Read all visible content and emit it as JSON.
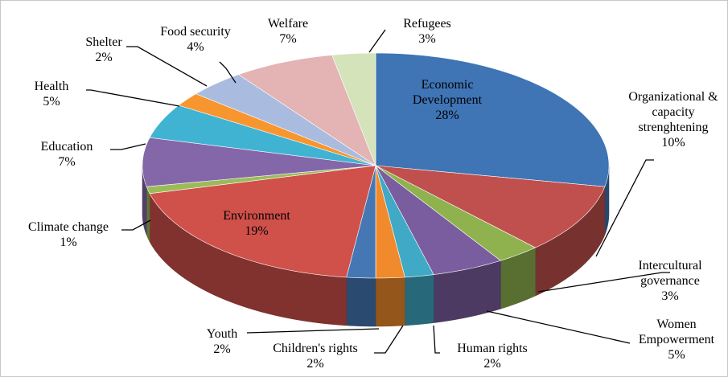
{
  "chart_data": {
    "type": "pie",
    "categories": [
      "Economic Development",
      "Organizational & capacity strenghtening",
      "Intercultural governance",
      "Women Empowerment",
      "Human rights",
      "Children's rights",
      "Youth",
      "Environment",
      "Climate change",
      "Education",
      "Health",
      "Shelter",
      "Food security",
      "Welfare",
      "Refugees"
    ],
    "values": [
      28,
      10,
      3,
      5,
      2,
      2,
      2,
      19,
      1,
      7,
      5,
      2,
      4,
      7,
      3
    ],
    "value_labels": [
      "28%",
      "10%",
      "3%",
      "5%",
      "2%",
      "2%",
      "2%",
      "19%",
      "1%",
      "7%",
      "5%",
      "2%",
      "4%",
      "7%",
      "3%"
    ],
    "colors": [
      "#3f74b5",
      "#c0504d",
      "#8fb24f",
      "#7a5d9e",
      "#3fa9c6",
      "#f08a2c",
      "#4677b5",
      "#d0504a",
      "#9bbb59",
      "#8467a8",
      "#40b3d3",
      "#f7962f",
      "#a9bcdf",
      "#e4b3b3",
      "#d5e3bb"
    ]
  }
}
